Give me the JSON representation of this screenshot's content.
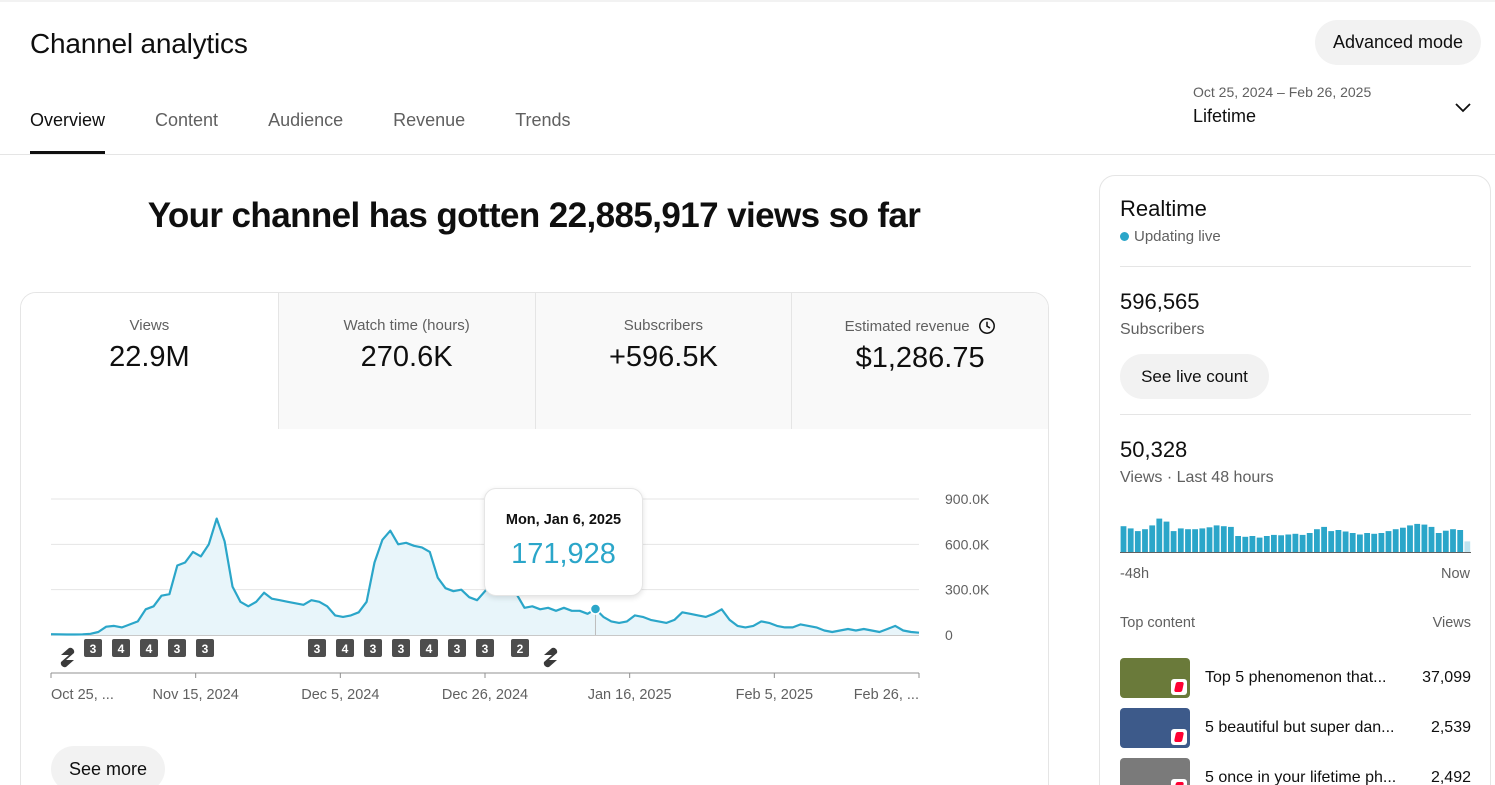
{
  "page": {
    "title": "Channel analytics",
    "advanced_mode_label": "Advanced mode"
  },
  "tabs": [
    {
      "label": "Overview",
      "active": true
    },
    {
      "label": "Content",
      "active": false
    },
    {
      "label": "Audience",
      "active": false
    },
    {
      "label": "Revenue",
      "active": false
    },
    {
      "label": "Trends",
      "active": false
    }
  ],
  "date_selector": {
    "range": "Oct 25, 2024 – Feb 26, 2025",
    "label": "Lifetime",
    "icon": "chevron-down-icon"
  },
  "headline": "Your channel has gotten 22,885,917 views so far",
  "metrics": [
    {
      "label": "Views",
      "value": "22.9M",
      "selected": true
    },
    {
      "label": "Watch time (hours)",
      "value": "270.6K",
      "selected": false
    },
    {
      "label": "Subscribers",
      "value": "+596.5K",
      "selected": false
    },
    {
      "label": "Estimated revenue",
      "value": "$1,286.75",
      "selected": false,
      "icon": "clock-icon"
    }
  ],
  "tooltip": {
    "date": "Mon, Jan 6, 2025",
    "value": "171,928"
  },
  "see_more_label": "See more",
  "colors": {
    "accent": "#2ba6c9",
    "area_fill": "#e8f5fa",
    "badge_bg": "#4d4d4d",
    "mini_bar": "#2ba6c9"
  },
  "chart_data": {
    "type": "area",
    "series_name": "Views",
    "x_tick_labels": [
      "Oct 25, ...",
      "Nov 15, 2024",
      "Dec 5, 2024",
      "Dec 26, 2024",
      "Jan 16, 2025",
      "Feb 5, 2025",
      "Feb 26, ..."
    ],
    "y_tick_labels": [
      "900.0K",
      "600.0K",
      "300.0K",
      "0"
    ],
    "ylim": [
      0,
      900000
    ],
    "grid": true,
    "values": [
      5000,
      4000,
      3000,
      3000,
      4000,
      8000,
      20000,
      55000,
      60000,
      50000,
      70000,
      90000,
      170000,
      190000,
      260000,
      270000,
      460000,
      480000,
      550000,
      520000,
      600000,
      770000,
      620000,
      320000,
      220000,
      190000,
      220000,
      280000,
      240000,
      230000,
      220000,
      210000,
      200000,
      230000,
      220000,
      190000,
      130000,
      120000,
      130000,
      150000,
      220000,
      480000,
      630000,
      690000,
      600000,
      610000,
      590000,
      580000,
      550000,
      380000,
      310000,
      290000,
      300000,
      250000,
      230000,
      290000,
      350000,
      460000,
      440000,
      270000,
      180000,
      190000,
      170000,
      180000,
      160000,
      180000,
      160000,
      160000,
      140000,
      171928,
      120000,
      90000,
      80000,
      90000,
      130000,
      120000,
      100000,
      90000,
      80000,
      100000,
      150000,
      140000,
      130000,
      120000,
      140000,
      170000,
      100000,
      60000,
      50000,
      60000,
      90000,
      80000,
      60000,
      50000,
      50000,
      70000,
      60000,
      50000,
      30000,
      20000,
      30000,
      40000,
      30000,
      40000,
      30000,
      20000,
      40000,
      60000,
      30000,
      20000,
      15000
    ],
    "highlight_index": 69,
    "markers": [
      {
        "type": "shorts",
        "text": ""
      },
      {
        "type": "count",
        "text": "3"
      },
      {
        "type": "count",
        "text": "4"
      },
      {
        "type": "count",
        "text": "4"
      },
      {
        "type": "count",
        "text": "3"
      },
      {
        "type": "count",
        "text": "3"
      },
      {
        "type": "count",
        "text": "3"
      },
      {
        "type": "count",
        "text": "4"
      },
      {
        "type": "count",
        "text": "3"
      },
      {
        "type": "count",
        "text": "3"
      },
      {
        "type": "count",
        "text": "4"
      },
      {
        "type": "count",
        "text": "3"
      },
      {
        "type": "count",
        "text": "3"
      },
      {
        "type": "count",
        "text": "2"
      },
      {
        "type": "shorts",
        "text": ""
      }
    ]
  },
  "realtime": {
    "title": "Realtime",
    "status": "Updating live",
    "subscribers_value": "596,565",
    "subscribers_label": "Subscribers",
    "live_count_button": "See live count",
    "views_value": "50,328",
    "views_label": "Views · Last 48 hours",
    "axis_start": "-48h",
    "axis_end": "Now",
    "bars": [
      0.68,
      0.62,
      0.55,
      0.6,
      0.7,
      0.88,
      0.8,
      0.55,
      0.62,
      0.6,
      0.6,
      0.62,
      0.65,
      0.7,
      0.68,
      0.66,
      0.42,
      0.4,
      0.42,
      0.38,
      0.42,
      0.45,
      0.44,
      0.46,
      0.48,
      0.45,
      0.5,
      0.6,
      0.66,
      0.55,
      0.58,
      0.54,
      0.5,
      0.46,
      0.5,
      0.48,
      0.5,
      0.55,
      0.6,
      0.64,
      0.7,
      0.74,
      0.72,
      0.66,
      0.5,
      0.56,
      0.6,
      0.58,
      0.28
    ],
    "top_content_label": "Top content",
    "views_col_label": "Views",
    "top_content": [
      {
        "title": "Top 5 phenomenon that...",
        "views": "37,099",
        "thumb_color": "#6a7a3a"
      },
      {
        "title": "5 beautiful but super dan...",
        "views": "2,539",
        "thumb_color": "#3d5a8a"
      },
      {
        "title": "5 once in your lifetime ph...",
        "views": "2,492",
        "thumb_color": "#7a7a7a"
      }
    ]
  }
}
